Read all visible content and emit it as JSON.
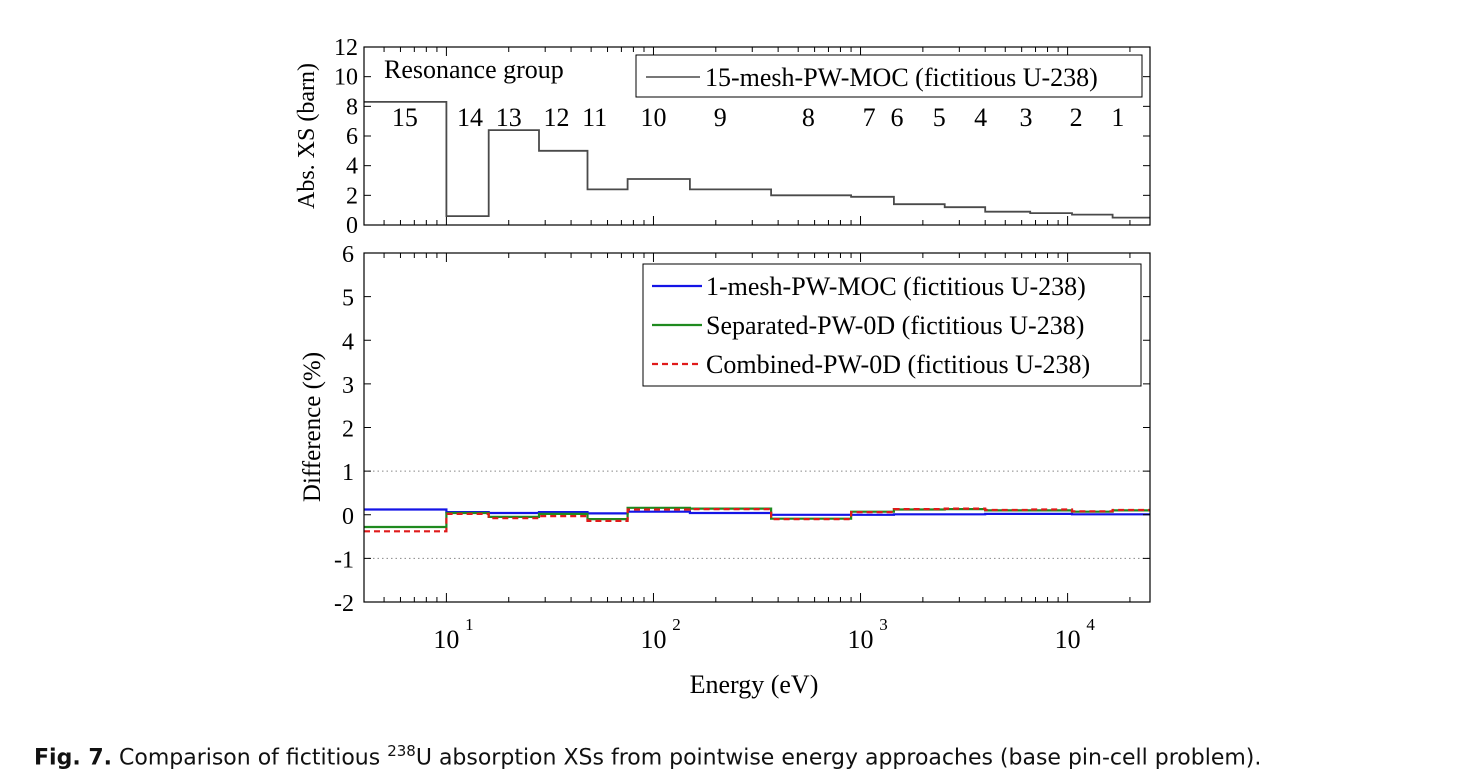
{
  "chart_data": [
    {
      "type": "line",
      "xscale": "log",
      "xlim": [
        4,
        25000
      ],
      "ylim": [
        0,
        12
      ],
      "ylabel": "Abs. XS (barn)",
      "yticks": [
        0,
        2,
        4,
        6,
        8,
        10,
        12
      ],
      "annotation": "Resonance group",
      "group_labels": [
        {
          "text": "15",
          "x": 6.3
        },
        {
          "text": "14",
          "x": 13
        },
        {
          "text": "13",
          "x": 20
        },
        {
          "text": "12",
          "x": 34
        },
        {
          "text": "11",
          "x": 52
        },
        {
          "text": "10",
          "x": 100
        },
        {
          "text": "9",
          "x": 210
        },
        {
          "text": "8",
          "x": 560
        },
        {
          "text": "7",
          "x": 1100
        },
        {
          "text": "6",
          "x": 1500
        },
        {
          "text": "5",
          "x": 2400
        },
        {
          "text": "4",
          "x": 3800
        },
        {
          "text": "3",
          "x": 6300
        },
        {
          "text": "2",
          "x": 11000
        },
        {
          "text": "1",
          "x": 17500
        }
      ],
      "series": [
        {
          "name": "15-mesh-PW-MOC (fictitious U-238)",
          "color": "#4a4a4a",
          "style": "solid",
          "step_x": [
            4,
            10,
            16,
            28,
            48,
            75,
            150,
            370,
            900,
            1450,
            2550,
            4000,
            6600,
            10500,
            16500,
            25000
          ],
          "step_y": [
            8.3,
            0.6,
            6.4,
            5.0,
            2.4,
            3.1,
            2.4,
            2.0,
            1.9,
            1.4,
            1.2,
            0.9,
            0.8,
            0.7,
            0.5
          ]
        }
      ],
      "legend_position": "top-right"
    },
    {
      "type": "line",
      "xscale": "log",
      "xlim": [
        4,
        25000
      ],
      "ylim": [
        -2,
        6
      ],
      "xlabel": "Energy (eV)",
      "ylabel": "Difference (%)",
      "yticks": [
        -2,
        -1,
        0,
        1,
        2,
        3,
        4,
        5,
        6
      ],
      "xticks": [
        {
          "value": 10,
          "base": "10",
          "exp": "1"
        },
        {
          "value": 100,
          "base": "10",
          "exp": "2"
        },
        {
          "value": 1000,
          "base": "10",
          "exp": "3"
        },
        {
          "value": 10000,
          "base": "10",
          "exp": "4"
        }
      ],
      "reference_lines": [
        -1,
        1
      ],
      "series": [
        {
          "name": "1-mesh-PW-MOC (fictitious U-238)",
          "color": "#1414e6",
          "style": "solid",
          "step_x": [
            4,
            10,
            16,
            28,
            48,
            75,
            150,
            370,
            900,
            1450,
            2550,
            4000,
            6600,
            10500,
            16500,
            25000
          ],
          "step_y": [
            0.12,
            0.06,
            0.04,
            0.06,
            0.03,
            0.07,
            0.04,
            0.0,
            0.0,
            0.01,
            0.01,
            0.02,
            0.02,
            0.01,
            0.01
          ]
        },
        {
          "name": "Separated-PW-0D (fictitious U-238)",
          "color": "#1f8a1f",
          "style": "solid",
          "step_x": [
            4,
            10,
            16,
            28,
            48,
            75,
            150,
            370,
            900,
            1450,
            2550,
            4000,
            6600,
            10500,
            16500,
            25000
          ],
          "step_y": [
            -0.28,
            0.04,
            -0.05,
            0.02,
            -0.1,
            0.16,
            0.14,
            -0.09,
            0.07,
            0.12,
            0.13,
            0.1,
            0.1,
            0.07,
            0.1
          ]
        },
        {
          "name": "Combined-PW-0D (fictitious U-238)",
          "color": "#e01a1a",
          "style": "dashed",
          "step_x": [
            4,
            10,
            16,
            28,
            48,
            75,
            150,
            370,
            900,
            1450,
            2550,
            4000,
            6600,
            10500,
            16500,
            25000
          ],
          "step_y": [
            -0.38,
            0.02,
            -0.08,
            -0.03,
            -0.14,
            0.12,
            0.13,
            -0.1,
            0.06,
            0.13,
            0.14,
            0.11,
            0.12,
            0.08,
            0.11
          ]
        }
      ],
      "legend_position": "top-right"
    }
  ],
  "caption": {
    "label": "Fig. 7.",
    "text_before": " Comparison of fictitious ",
    "superscript": "238",
    "text_after": "U absorption XSs from pointwise energy approaches (base pin-cell problem)."
  }
}
